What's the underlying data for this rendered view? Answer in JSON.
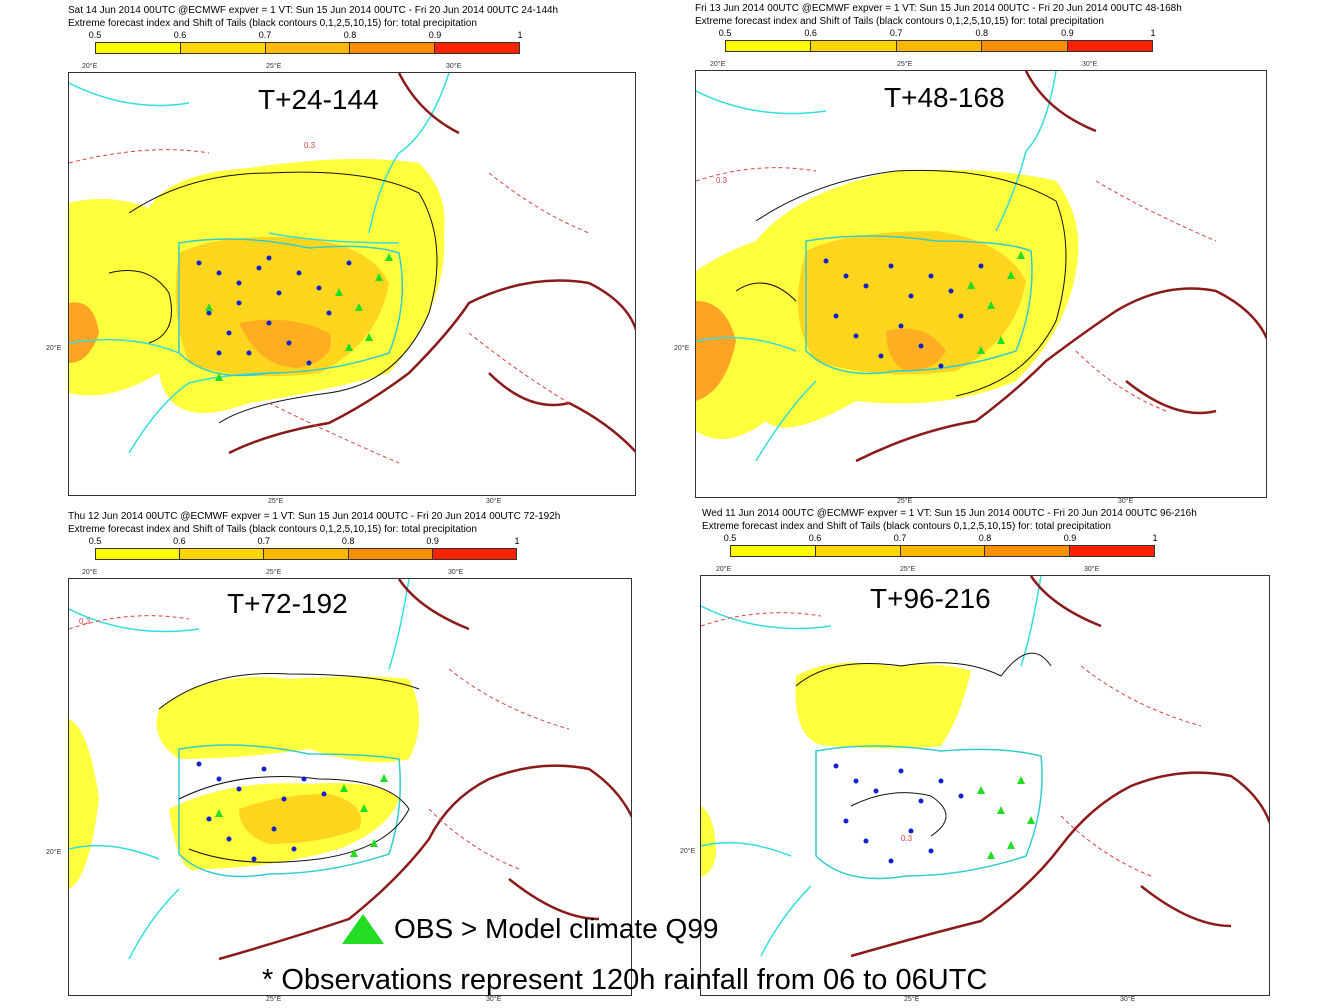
{
  "colorbar": {
    "ticks": [
      "0.5",
      "0.6",
      "0.7",
      "0.8",
      "0.9",
      "1"
    ],
    "colors": [
      "#ffff00",
      "#ffd700",
      "#ffb700",
      "#ff8f00",
      "#ff6000"
    ],
    "last_color": "#ff2200"
  },
  "panels": [
    {
      "header1": "Sat 14 Jun 2014 00UTC @ECMWF expver = 1 VT: Sun 15 Jun 2014 00UTC - Fri 20 Jun 2014 00UTC  24-144h",
      "header2": "Extreme forecast index and Shift of Tails (black contours 0,1,2,5,10,15) for: total precipitation",
      "lead": "T+24-144",
      "lon_top": [
        "20°E",
        "25°E",
        "30°E"
      ],
      "lon_side": "20°E",
      "lon_bottom": [
        "25°E",
        "30°E"
      ]
    },
    {
      "header1": "Fri 13 Jun 2014 00UTC @ECMWF expver = 1 VT: Sun 15 Jun 2014 00UTC - Fri 20 Jun 2014 00UTC  48-168h",
      "header2": "Extreme forecast index and Shift of Tails (black contours 0,1,2,5,10,15) for: total precipitation",
      "lead": "T+48-168",
      "lon_top": [
        "20°E",
        "25°E",
        "30°E"
      ],
      "lon_side": "20°E",
      "lon_bottom": [
        "25°E",
        "30°E"
      ]
    },
    {
      "header1": "Thu 12 Jun 2014 00UTC @ECMWF expver = 1 VT: Sun 15 Jun 2014 00UTC - Fri 20 Jun 2014 00UTC  72-192h",
      "header2": "Extreme forecast index and Shift of Tails (black contours 0,1,2,5,10,15) for: total precipitation",
      "lead": "T+72-192",
      "lon_top": [
        "20°E",
        "25°E",
        "30°E"
      ],
      "lon_side": "20°E",
      "lon_bottom": [
        "25°E",
        "30°E"
      ]
    },
    {
      "header1": "Wed 11 Jun 2014 00UTC @ECMWF expver = 1 VT: Sun 15 Jun 2014 00UTC - Fri 20 Jun 2014 00UTC  96-216h",
      "header2": "Extreme forecast index and Shift of Tails (black contours 0,1,2,5,10,15) for: total precipitation",
      "lead": "T+96-216",
      "lon_top": [
        "20°E",
        "25°E",
        "30°E"
      ],
      "lon_side": "20°E",
      "lon_bottom": [
        "25°E",
        "30°E"
      ]
    }
  ],
  "contour_label": "0.3",
  "legend": {
    "marker_color": "#22dd22",
    "label": "OBS > Model climate Q99"
  },
  "footnote": "* Observations represent 120h rainfall from 06 to 06UTC"
}
